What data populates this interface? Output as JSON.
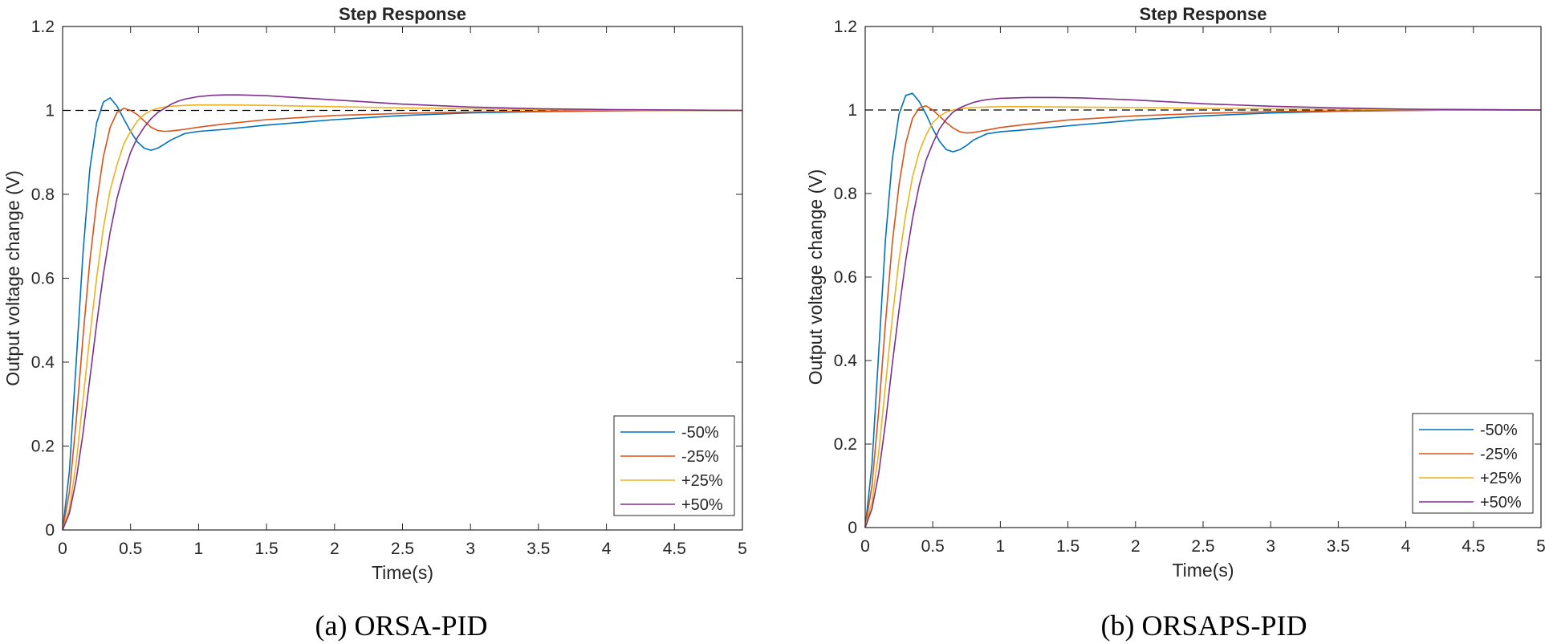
{
  "chart_data": [
    {
      "type": "line",
      "title": "Step Response",
      "xlabel": "Time(s)",
      "ylabel": "Output voltage change (V)",
      "caption": "(a) ORSA-PID",
      "xlim": [
        0,
        5
      ],
      "ylim": [
        0,
        1.2
      ],
      "xticks": [
        0,
        0.5,
        1,
        1.5,
        2,
        2.5,
        3,
        3.5,
        4,
        4.5,
        5
      ],
      "xtick_labels": [
        "0",
        "0.5",
        "1",
        "1.5",
        "2",
        "2.5",
        "3",
        "3.5",
        "4",
        "4.5",
        "5"
      ],
      "yticks": [
        0,
        0.2,
        0.4,
        0.6,
        0.8,
        1,
        1.2
      ],
      "ytick_labels": [
        "0",
        "0.2",
        "0.4",
        "0.6",
        "0.8",
        "1",
        "1.2"
      ],
      "reference_line": {
        "y": 1,
        "style": "dashed",
        "color": "#000000"
      },
      "legend_position": "bottom-right",
      "series": [
        {
          "name": "-50%",
          "color": "#0072BD",
          "x": [
            0,
            0.05,
            0.1,
            0.15,
            0.2,
            0.25,
            0.3,
            0.35,
            0.4,
            0.45,
            0.5,
            0.55,
            0.6,
            0.65,
            0.7,
            0.75,
            0.8,
            0.9,
            1.0,
            1.2,
            1.5,
            2.0,
            2.5,
            3.0,
            3.5,
            4.0,
            4.5,
            5.0
          ],
          "y": [
            0,
            0.14,
            0.4,
            0.66,
            0.86,
            0.97,
            1.02,
            1.03,
            1.01,
            0.98,
            0.95,
            0.925,
            0.91,
            0.905,
            0.91,
            0.92,
            0.93,
            0.945,
            0.95,
            0.955,
            0.965,
            0.978,
            0.988,
            0.994,
            0.997,
            0.999,
            1.0,
            1.0
          ]
        },
        {
          "name": "-25%",
          "color": "#D95319",
          "x": [
            0,
            0.05,
            0.1,
            0.15,
            0.2,
            0.25,
            0.3,
            0.35,
            0.4,
            0.45,
            0.5,
            0.55,
            0.6,
            0.65,
            0.7,
            0.75,
            0.8,
            0.85,
            0.9,
            1.0,
            1.2,
            1.5,
            2.0,
            2.5,
            3.0,
            3.5,
            4.0,
            4.5,
            5.0
          ],
          "y": [
            0,
            0.09,
            0.26,
            0.46,
            0.64,
            0.78,
            0.89,
            0.96,
            0.995,
            1.005,
            1.0,
            0.99,
            0.975,
            0.96,
            0.952,
            0.95,
            0.951,
            0.953,
            0.955,
            0.96,
            0.968,
            0.978,
            0.988,
            0.993,
            0.996,
            0.998,
            0.999,
            1.0,
            1.0
          ]
        },
        {
          "name": "+25%",
          "color": "#EDB120",
          "x": [
            0,
            0.05,
            0.1,
            0.15,
            0.2,
            0.25,
            0.3,
            0.35,
            0.4,
            0.45,
            0.5,
            0.55,
            0.6,
            0.65,
            0.7,
            0.75,
            0.8,
            0.9,
            1.0,
            1.2,
            1.5,
            2.0,
            2.5,
            3.0,
            3.5,
            4.0,
            4.5,
            5.0
          ],
          "y": [
            0,
            0.05,
            0.16,
            0.31,
            0.46,
            0.6,
            0.72,
            0.81,
            0.87,
            0.92,
            0.95,
            0.975,
            0.99,
            1.0,
            1.005,
            1.008,
            1.01,
            1.012,
            1.013,
            1.013,
            1.012,
            1.009,
            1.006,
            1.004,
            1.002,
            1.001,
            1.0,
            1.0
          ]
        },
        {
          "name": "+50%",
          "color": "#7E2F8E",
          "x": [
            0,
            0.05,
            0.1,
            0.15,
            0.2,
            0.25,
            0.3,
            0.35,
            0.4,
            0.45,
            0.5,
            0.55,
            0.6,
            0.65,
            0.7,
            0.75,
            0.8,
            0.85,
            0.9,
            1.0,
            1.1,
            1.2,
            1.3,
            1.5,
            2.0,
            2.5,
            3.0,
            3.5,
            4.0,
            4.5,
            5.0
          ],
          "y": [
            0,
            0.04,
            0.12,
            0.23,
            0.36,
            0.49,
            0.61,
            0.71,
            0.79,
            0.85,
            0.9,
            0.935,
            0.96,
            0.98,
            0.995,
            1.005,
            1.015,
            1.022,
            1.027,
            1.033,
            1.036,
            1.037,
            1.037,
            1.035,
            1.025,
            1.015,
            1.008,
            1.004,
            1.002,
            1.001,
            1.0
          ]
        }
      ]
    },
    {
      "type": "line",
      "title": "Step Response",
      "xlabel": "Time(s)",
      "ylabel": "Output voltage change (V)",
      "caption": "(b) ORSAPS-PID",
      "xlim": [
        0,
        5
      ],
      "ylim": [
        0,
        1.2
      ],
      "xticks": [
        0,
        0.5,
        1,
        1.5,
        2,
        2.5,
        3,
        3.5,
        4,
        4.5,
        5
      ],
      "xtick_labels": [
        "0",
        "0.5",
        "1",
        "1.5",
        "2",
        "2.5",
        "3",
        "3.5",
        "4",
        "4.5",
        "5"
      ],
      "yticks": [
        0,
        0.2,
        0.4,
        0.6,
        0.8,
        1,
        1.2
      ],
      "ytick_labels": [
        "0",
        "0.2",
        "0.4",
        "0.6",
        "0.8",
        "1",
        "1.2"
      ],
      "reference_line": {
        "y": 1,
        "style": "dashed",
        "color": "#000000"
      },
      "legend_position": "bottom-right",
      "series": [
        {
          "name": "-50%",
          "color": "#0072BD",
          "x": [
            0,
            0.05,
            0.1,
            0.15,
            0.2,
            0.25,
            0.3,
            0.35,
            0.4,
            0.45,
            0.5,
            0.55,
            0.6,
            0.65,
            0.7,
            0.75,
            0.8,
            0.9,
            1.0,
            1.2,
            1.5,
            2.0,
            2.5,
            3.0,
            3.5,
            4.0,
            4.5,
            5.0
          ],
          "y": [
            0,
            0.15,
            0.42,
            0.69,
            0.88,
            0.99,
            1.035,
            1.04,
            1.02,
            0.99,
            0.955,
            0.925,
            0.905,
            0.9,
            0.905,
            0.915,
            0.928,
            0.943,
            0.948,
            0.953,
            0.962,
            0.976,
            0.986,
            0.993,
            0.997,
            0.999,
            1.0,
            1.0
          ]
        },
        {
          "name": "-25%",
          "color": "#D95319",
          "x": [
            0,
            0.05,
            0.1,
            0.15,
            0.2,
            0.25,
            0.3,
            0.35,
            0.4,
            0.45,
            0.5,
            0.55,
            0.6,
            0.65,
            0.7,
            0.75,
            0.8,
            0.85,
            0.9,
            1.0,
            1.2,
            1.5,
            2.0,
            2.5,
            3.0,
            3.5,
            4.0,
            4.5,
            5.0
          ],
          "y": [
            0,
            0.1,
            0.28,
            0.49,
            0.68,
            0.82,
            0.92,
            0.98,
            1.005,
            1.01,
            1.0,
            0.985,
            0.97,
            0.957,
            0.948,
            0.945,
            0.946,
            0.949,
            0.952,
            0.958,
            0.966,
            0.976,
            0.986,
            0.992,
            0.996,
            0.998,
            0.999,
            1.0,
            1.0
          ]
        },
        {
          "name": "+25%",
          "color": "#EDB120",
          "x": [
            0,
            0.05,
            0.1,
            0.15,
            0.2,
            0.25,
            0.3,
            0.35,
            0.4,
            0.45,
            0.5,
            0.55,
            0.6,
            0.65,
            0.7,
            0.75,
            0.8,
            0.9,
            1.0,
            1.2,
            1.5,
            2.0,
            2.5,
            3.0,
            3.5,
            4.0,
            4.5,
            5.0
          ],
          "y": [
            0,
            0.06,
            0.18,
            0.34,
            0.5,
            0.64,
            0.75,
            0.84,
            0.9,
            0.94,
            0.97,
            0.985,
            0.995,
            1.0,
            1.003,
            1.005,
            1.006,
            1.007,
            1.008,
            1.008,
            1.007,
            1.006,
            1.004,
            1.003,
            1.002,
            1.001,
            1.0,
            1.0
          ]
        },
        {
          "name": "+50%",
          "color": "#7E2F8E",
          "x": [
            0,
            0.05,
            0.1,
            0.15,
            0.2,
            0.25,
            0.3,
            0.35,
            0.4,
            0.45,
            0.5,
            0.55,
            0.6,
            0.65,
            0.7,
            0.75,
            0.8,
            0.85,
            0.9,
            1.0,
            1.2,
            1.4,
            1.6,
            2.0,
            2.5,
            3.0,
            3.5,
            4.0,
            4.5,
            5.0
          ],
          "y": [
            0,
            0.045,
            0.13,
            0.25,
            0.39,
            0.52,
            0.64,
            0.74,
            0.82,
            0.88,
            0.92,
            0.955,
            0.978,
            0.995,
            1.005,
            1.012,
            1.018,
            1.022,
            1.025,
            1.028,
            1.03,
            1.03,
            1.029,
            1.024,
            1.015,
            1.009,
            1.005,
            1.002,
            1.001,
            1.0
          ]
        }
      ]
    }
  ]
}
